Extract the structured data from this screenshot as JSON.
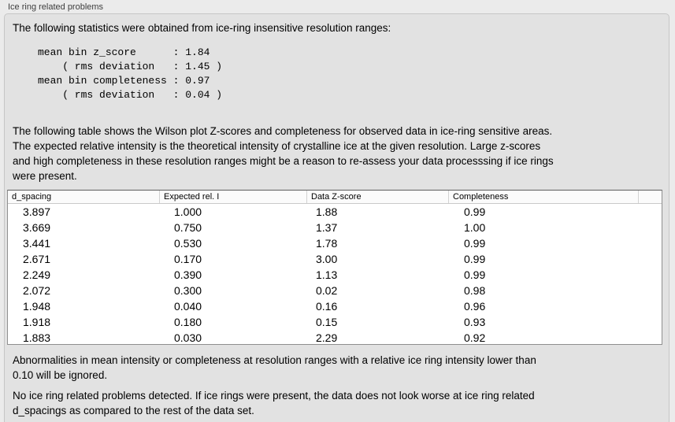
{
  "panel": {
    "title": "Ice ring related problems"
  },
  "intro_text": "The following statistics were obtained from ice-ring insensitive resolution ranges:",
  "stats_lines": [
    "mean bin z_score      : 1.84",
    "    ( rms deviation   : 1.45 )",
    "mean bin completeness : 0.97",
    "    ( rms deviation   : 0.04 )"
  ],
  "stats": {
    "mean_bin_z_score": 1.84,
    "z_score_rms_deviation": 1.45,
    "mean_bin_completeness": 0.97,
    "completeness_rms_deviation": 0.04
  },
  "table_description": "The following table shows the Wilson plot Z-scores and completeness for observed data in ice-ring sensitive areas.\nThe expected relative intensity is the theoretical intensity of crystalline ice at the given resolution. Large z-scores\nand high completeness in these resolution ranges might be a reason to re-assess your data processsing if ice rings\nwere present.",
  "table": {
    "columns": [
      "d_spacing",
      "Expected rel. I",
      "Data Z-score",
      "Completeness"
    ],
    "rows": [
      [
        "3.897",
        "1.000",
        "1.88",
        "0.99"
      ],
      [
        "3.669",
        "0.750",
        "1.37",
        "1.00"
      ],
      [
        "3.441",
        "0.530",
        "1.78",
        "0.99"
      ],
      [
        "2.671",
        "0.170",
        "3.00",
        "0.99"
      ],
      [
        "2.249",
        "0.390",
        "1.13",
        "0.99"
      ],
      [
        "2.072",
        "0.300",
        "0.02",
        "0.98"
      ],
      [
        "1.948",
        "0.040",
        "0.16",
        "0.96"
      ],
      [
        "1.918",
        "0.180",
        "0.15",
        "0.93"
      ],
      [
        "1.883",
        "0.030",
        "2.29",
        "0.92"
      ]
    ]
  },
  "ignore_note": "Abnormalities in mean intensity or completeness at resolution ranges with a relative ice ring intensity lower than\n0.10 will be ignored.",
  "conclusion": "No ice ring related problems detected. If ice rings were present, the data does not look worse at ice ring related\nd_spacings as compared to the rest of the data set.",
  "colors": {
    "page_background": "#ebebeb",
    "panel_background": "#e2e2e2",
    "table_background": "#ffffff"
  }
}
